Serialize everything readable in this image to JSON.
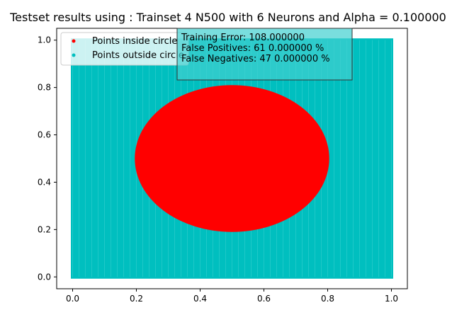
{
  "chart_data": {
    "type": "scatter",
    "title": "Testset results using : Trainset 4 N500 with 6 Neurons and Alpha = 0.100000",
    "xlabel": "",
    "ylabel": "",
    "xlim": [
      -0.05,
      1.05
    ],
    "ylim": [
      -0.05,
      1.05
    ],
    "xticks": [
      0.0,
      0.2,
      0.4,
      0.6,
      0.8,
      1.0
    ],
    "yticks": [
      0.0,
      0.2,
      0.4,
      0.6,
      0.8,
      1.0
    ],
    "xtick_labels": [
      "0.0",
      "0.2",
      "0.4",
      "0.6",
      "0.8",
      "1.0"
    ],
    "ytick_labels": [
      "0.0",
      "0.2",
      "0.4",
      "0.6",
      "0.8",
      "1.0"
    ],
    "grid": false,
    "legend_position": "upper-left",
    "series": [
      {
        "name": "Points inside circle",
        "color": "#ff0000",
        "marker": "dot",
        "region": {
          "shape": "ellipse",
          "center_x": 0.5,
          "center_y": 0.5,
          "radius_x": 0.305,
          "radius_y": 0.31
        }
      },
      {
        "name": "Points outside circle",
        "color": "#00bfbf",
        "marker": "dot",
        "region": {
          "shape": "grid",
          "x_range": [
            0.0,
            1.0
          ],
          "y_range": [
            0.0,
            1.0
          ],
          "step": 0.01
        }
      }
    ],
    "annotation": {
      "lines": [
        "Training Error: 108.000000",
        "False Positives: 61  0.000000 %",
        "False Negatives: 47  0.000000 %"
      ],
      "position": "top-center",
      "background": "#40d0d0"
    }
  }
}
